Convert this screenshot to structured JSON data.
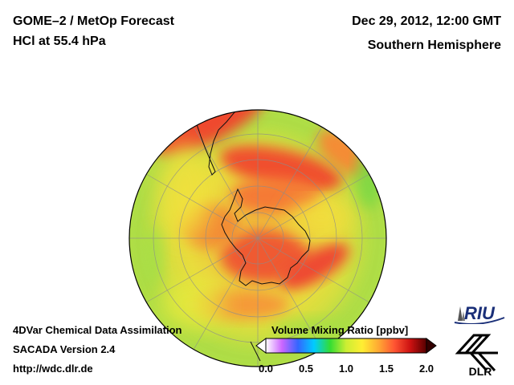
{
  "header": {
    "title_line1": "GOME–2 / MetOp Forecast",
    "title_line2": "HCl at 55.4 hPa",
    "date": "Dec 29, 2012, 12:00 GMT",
    "region": "Southern Hemisphere"
  },
  "footer": {
    "line1": "4DVar Chemical Data Assimilation",
    "line2": "SACADA Version 2.4",
    "line3": "http://wdc.dlr.de"
  },
  "colorbar": {
    "title": "Volume Mixing Ratio [ppbv]",
    "ticks": [
      "0.0",
      "0.5",
      "1.0",
      "1.5",
      "2.0"
    ],
    "colors": [
      "#ffffff",
      "#cc66ff",
      "#3366ff",
      "#00ccff",
      "#33dd33",
      "#ccee33",
      "#ffee33",
      "#ffaa33",
      "#ff5533",
      "#cc1111",
      "#550000"
    ]
  },
  "logos": {
    "riu": "RIU",
    "dlr": "DLR"
  },
  "map": {
    "projection": "orthographic south polar",
    "field_colors": [
      "#dcea3c",
      "#f5d53a",
      "#f79a3a",
      "#ef4a2f",
      "#b9e245",
      "#7ed845"
    ]
  }
}
